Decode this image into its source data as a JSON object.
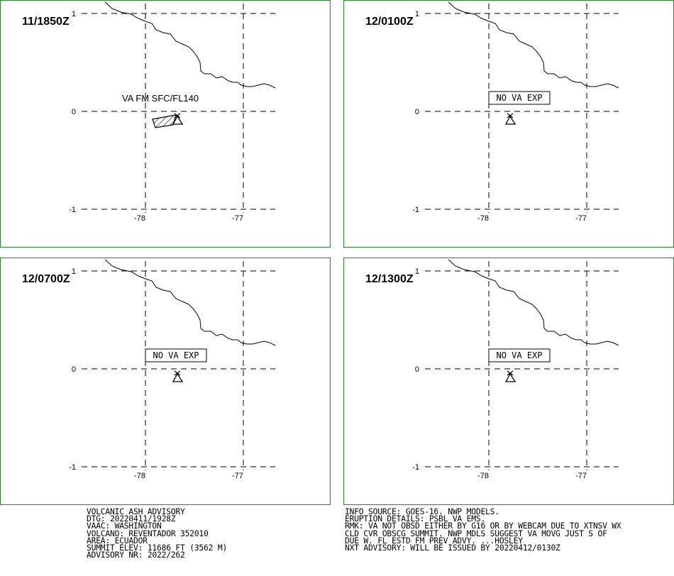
{
  "panels": [
    {
      "time": "11/1850Z",
      "label": "VA FM SFC/FL140",
      "label_style": "plain",
      "ash_polygon": true
    },
    {
      "time": "12/0100Z",
      "label": "NO VA EXP",
      "label_style": "boxed",
      "ash_polygon": false
    },
    {
      "time": "12/0700Z",
      "label": "NO VA EXP",
      "label_style": "boxed",
      "ash_polygon": false
    },
    {
      "time": "12/1300Z",
      "label": "NO VA EXP",
      "label_style": "boxed",
      "ash_polygon": false
    }
  ],
  "axes": {
    "lat_ticks": [
      "1",
      "0",
      "-1"
    ],
    "lon_ticks": [
      "-78",
      "-77"
    ]
  },
  "advisory_left": [
    "VOLCANIC ASH ADVISORY",
    "DTG: 20220411/1928Z",
    "VAAC: WASHINGTON",
    "VOLCANO: REVENTADOR 352010",
    "AREA: ECUADOR",
    "SUMMIT ELEV: 11686 FT (3562 M)",
    "ADVISORY NR: 2022/262"
  ],
  "advisory_right": [
    "INFO SOURCE: GOES-16. NWP MODELS.",
    "ERUPTION DETAILS: PSBL VA EMS.",
    "RMK: VA NOT OBSD EITHER BY G16 OR BY WEBCAM DUE TO XTNSV WX",
    "CLD CVR OBSCG SUMMIT. NWP MDLS SUGGEST VA MOVG JUST S OF",
    "DUE W. FL ESTD FM PREV ADVY. ...HOSLEY",
    "NXT ADVISORY: WILL BE ISSUED BY 20220412/0130Z"
  ],
  "colors": {
    "frame": "#2e8b2e",
    "ink": "#000000"
  }
}
